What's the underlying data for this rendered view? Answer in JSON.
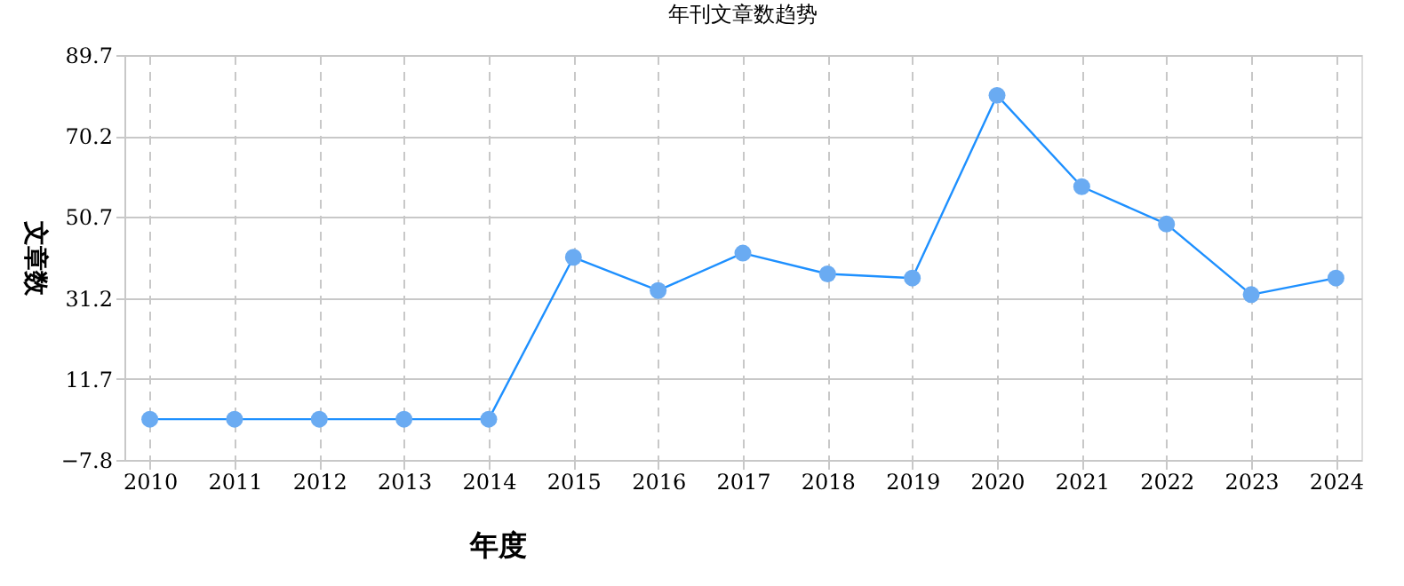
{
  "chart_data": {
    "type": "line",
    "title": "年刊文章数趋势",
    "xlabel": "年度",
    "ylabel": "文章数",
    "categories": [
      "2010",
      "2011",
      "2012",
      "2013",
      "2014",
      "2015",
      "2016",
      "2017",
      "2018",
      "2019",
      "2020",
      "2021",
      "2022",
      "2023",
      "2024"
    ],
    "series": [
      {
        "color": "#1e90ff",
        "values": [
          2,
          2,
          2,
          2,
          2,
          41,
          33,
          42,
          37,
          36,
          80,
          58,
          49,
          32,
          36
        ]
      }
    ],
    "ylim": [
      -7.8,
      89.7
    ],
    "yticks": [
      -7.8,
      11.7,
      31.2,
      50.7,
      70.2,
      89.7
    ],
    "grid": true,
    "marker": "circle",
    "line_style": "solid"
  }
}
